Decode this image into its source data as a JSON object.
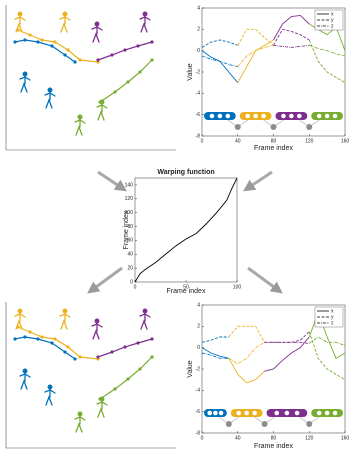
{
  "chart_data": [
    {
      "type": "line",
      "xlabel": "Frame index",
      "ylabel": "Value",
      "x": [
        0,
        10,
        20,
        30,
        40,
        50,
        60,
        70,
        80,
        90,
        100,
        110,
        120,
        130,
        140,
        150,
        160
      ],
      "xlim": [
        0,
        160
      ],
      "ylim": [
        -8,
        4
      ],
      "xticks": [
        0,
        40,
        80,
        120,
        160
      ],
      "yticks": [
        -8,
        -6,
        -4,
        -2,
        0,
        2,
        4
      ],
      "legend": "upper right",
      "segment_bounds": [
        0,
        40,
        80,
        120,
        160
      ],
      "segment_colors": [
        "#0072bd",
        "#edb120",
        "#7e2f8e",
        "#77ac30"
      ],
      "series": [
        {
          "name": "x",
          "color": "#000000",
          "dash": "solid",
          "values": [
            0,
            -0.6,
            -1,
            -2,
            -3,
            -1.5,
            0,
            0.5,
            1,
            2.5,
            3.2,
            3.3,
            2.5,
            2,
            1.5,
            2.2,
            0
          ]
        },
        {
          "name": "y",
          "color": "#000000",
          "dash": "dash",
          "values": [
            0.3,
            0.8,
            1,
            0.8,
            0.5,
            2,
            2,
            1.2,
            0.5,
            2,
            1.8,
            1.5,
            1,
            -1,
            -2,
            -2.5,
            -3
          ]
        },
        {
          "name": "z",
          "color": "#000000",
          "dash": "dashdot",
          "values": [
            -0.5,
            -0.8,
            -1,
            -1.3,
            -1.5,
            -0.5,
            0,
            0.3,
            0.5,
            0.4,
            0.3,
            0.4,
            0.5,
            0.2,
            0,
            -0.3,
            -0.5
          ]
        }
      ]
    },
    {
      "type": "line",
      "title": "Warping function",
      "xlabel": "Frame index",
      "ylabel": "Frame index",
      "x": [
        0,
        5,
        10,
        20,
        30,
        40,
        50,
        60,
        70,
        80,
        90,
        95,
        100
      ],
      "xlim": [
        0,
        100
      ],
      "ylim": [
        0,
        150
      ],
      "xticks": [
        0,
        50,
        100
      ],
      "yticks": [
        0,
        20,
        40,
        60,
        80,
        100,
        120,
        140
      ],
      "series": [
        {
          "color": "#000000",
          "dash": "solid",
          "values": [
            0,
            12,
            18,
            28,
            40,
            52,
            62,
            70,
            84,
            100,
            118,
            135,
            150
          ]
        }
      ]
    },
    {
      "type": "line",
      "xlabel": "Frame index",
      "ylabel": "Value",
      "x": [
        0,
        10,
        20,
        30,
        40,
        50,
        60,
        70,
        80,
        90,
        100,
        110,
        120,
        130,
        140,
        150,
        160
      ],
      "xlim": [
        0,
        160
      ],
      "ylim": [
        -8,
        4
      ],
      "xticks": [
        0,
        40,
        80,
        120,
        160
      ],
      "yticks": [
        -8,
        -6,
        -4,
        -2,
        0,
        2,
        4
      ],
      "legend": "upper right",
      "segment_bounds": [
        0,
        30,
        70,
        120,
        160
      ],
      "segment_colors": [
        "#0072bd",
        "#edb120",
        "#7e2f8e",
        "#77ac30"
      ],
      "series": [
        {
          "name": "x",
          "color": "#000000",
          "dash": "solid",
          "values": [
            0,
            -0.5,
            -0.8,
            -1,
            -2.5,
            -3.3,
            -3,
            -2.2,
            -2,
            -1.2,
            -0.5,
            0,
            1,
            3.3,
            1,
            -1,
            -0.5
          ]
        },
        {
          "name": "y",
          "color": "#000000",
          "dash": "dash",
          "values": [
            0.5,
            0.7,
            1,
            1,
            2,
            2,
            2,
            0.5,
            0.5,
            0.5,
            0.5,
            0.7,
            1.5,
            -1,
            -2,
            -2.5,
            -3
          ]
        },
        {
          "name": "z",
          "color": "#000000",
          "dash": "dashdot",
          "values": [
            -0.5,
            -0.7,
            -1,
            -1,
            -1.5,
            -1,
            0,
            0.5,
            0.5,
            0.5,
            0.5,
            0.5,
            0.4,
            1,
            0.5,
            0.5,
            0.2
          ]
        }
      ]
    }
  ]
}
